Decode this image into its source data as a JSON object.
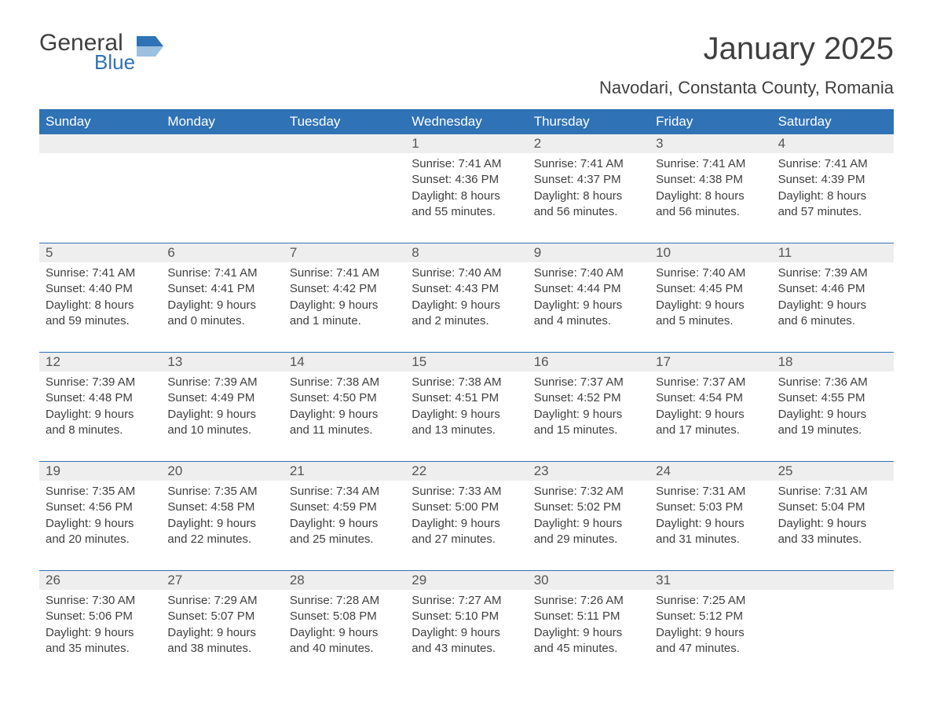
{
  "brand": {
    "word1": "General",
    "word2": "Blue",
    "color": "#2f72b6"
  },
  "title": "January 2025",
  "location": "Navodari, Constanta County, Romania",
  "theme": {
    "header_bg": "#2f72b6",
    "header_fg": "#ffffff",
    "daynum_bg": "#eeeeee",
    "text_color": "#3f3f3f",
    "rule_color": "#2f72b6",
    "page_bg": "#ffffff",
    "title_fontsize": 40,
    "location_fontsize": 22,
    "weekday_fontsize": 17,
    "body_fontsize": 15
  },
  "weekdays": [
    "Sunday",
    "Monday",
    "Tuesday",
    "Wednesday",
    "Thursday",
    "Friday",
    "Saturday"
  ],
  "weeks": [
    [
      {
        "n": "",
        "sunrise": "",
        "sunset": "",
        "daylight": ""
      },
      {
        "n": "",
        "sunrise": "",
        "sunset": "",
        "daylight": ""
      },
      {
        "n": "",
        "sunrise": "",
        "sunset": "",
        "daylight": ""
      },
      {
        "n": "1",
        "sunrise": "Sunrise: 7:41 AM",
        "sunset": "Sunset: 4:36 PM",
        "daylight": "Daylight: 8 hours and 55 minutes."
      },
      {
        "n": "2",
        "sunrise": "Sunrise: 7:41 AM",
        "sunset": "Sunset: 4:37 PM",
        "daylight": "Daylight: 8 hours and 56 minutes."
      },
      {
        "n": "3",
        "sunrise": "Sunrise: 7:41 AM",
        "sunset": "Sunset: 4:38 PM",
        "daylight": "Daylight: 8 hours and 56 minutes."
      },
      {
        "n": "4",
        "sunrise": "Sunrise: 7:41 AM",
        "sunset": "Sunset: 4:39 PM",
        "daylight": "Daylight: 8 hours and 57 minutes."
      }
    ],
    [
      {
        "n": "5",
        "sunrise": "Sunrise: 7:41 AM",
        "sunset": "Sunset: 4:40 PM",
        "daylight": "Daylight: 8 hours and 59 minutes."
      },
      {
        "n": "6",
        "sunrise": "Sunrise: 7:41 AM",
        "sunset": "Sunset: 4:41 PM",
        "daylight": "Daylight: 9 hours and 0 minutes."
      },
      {
        "n": "7",
        "sunrise": "Sunrise: 7:41 AM",
        "sunset": "Sunset: 4:42 PM",
        "daylight": "Daylight: 9 hours and 1 minute."
      },
      {
        "n": "8",
        "sunrise": "Sunrise: 7:40 AM",
        "sunset": "Sunset: 4:43 PM",
        "daylight": "Daylight: 9 hours and 2 minutes."
      },
      {
        "n": "9",
        "sunrise": "Sunrise: 7:40 AM",
        "sunset": "Sunset: 4:44 PM",
        "daylight": "Daylight: 9 hours and 4 minutes."
      },
      {
        "n": "10",
        "sunrise": "Sunrise: 7:40 AM",
        "sunset": "Sunset: 4:45 PM",
        "daylight": "Daylight: 9 hours and 5 minutes."
      },
      {
        "n": "11",
        "sunrise": "Sunrise: 7:39 AM",
        "sunset": "Sunset: 4:46 PM",
        "daylight": "Daylight: 9 hours and 6 minutes."
      }
    ],
    [
      {
        "n": "12",
        "sunrise": "Sunrise: 7:39 AM",
        "sunset": "Sunset: 4:48 PM",
        "daylight": "Daylight: 9 hours and 8 minutes."
      },
      {
        "n": "13",
        "sunrise": "Sunrise: 7:39 AM",
        "sunset": "Sunset: 4:49 PM",
        "daylight": "Daylight: 9 hours and 10 minutes."
      },
      {
        "n": "14",
        "sunrise": "Sunrise: 7:38 AM",
        "sunset": "Sunset: 4:50 PM",
        "daylight": "Daylight: 9 hours and 11 minutes."
      },
      {
        "n": "15",
        "sunrise": "Sunrise: 7:38 AM",
        "sunset": "Sunset: 4:51 PM",
        "daylight": "Daylight: 9 hours and 13 minutes."
      },
      {
        "n": "16",
        "sunrise": "Sunrise: 7:37 AM",
        "sunset": "Sunset: 4:52 PM",
        "daylight": "Daylight: 9 hours and 15 minutes."
      },
      {
        "n": "17",
        "sunrise": "Sunrise: 7:37 AM",
        "sunset": "Sunset: 4:54 PM",
        "daylight": "Daylight: 9 hours and 17 minutes."
      },
      {
        "n": "18",
        "sunrise": "Sunrise: 7:36 AM",
        "sunset": "Sunset: 4:55 PM",
        "daylight": "Daylight: 9 hours and 19 minutes."
      }
    ],
    [
      {
        "n": "19",
        "sunrise": "Sunrise: 7:35 AM",
        "sunset": "Sunset: 4:56 PM",
        "daylight": "Daylight: 9 hours and 20 minutes."
      },
      {
        "n": "20",
        "sunrise": "Sunrise: 7:35 AM",
        "sunset": "Sunset: 4:58 PM",
        "daylight": "Daylight: 9 hours and 22 minutes."
      },
      {
        "n": "21",
        "sunrise": "Sunrise: 7:34 AM",
        "sunset": "Sunset: 4:59 PM",
        "daylight": "Daylight: 9 hours and 25 minutes."
      },
      {
        "n": "22",
        "sunrise": "Sunrise: 7:33 AM",
        "sunset": "Sunset: 5:00 PM",
        "daylight": "Daylight: 9 hours and 27 minutes."
      },
      {
        "n": "23",
        "sunrise": "Sunrise: 7:32 AM",
        "sunset": "Sunset: 5:02 PM",
        "daylight": "Daylight: 9 hours and 29 minutes."
      },
      {
        "n": "24",
        "sunrise": "Sunrise: 7:31 AM",
        "sunset": "Sunset: 5:03 PM",
        "daylight": "Daylight: 9 hours and 31 minutes."
      },
      {
        "n": "25",
        "sunrise": "Sunrise: 7:31 AM",
        "sunset": "Sunset: 5:04 PM",
        "daylight": "Daylight: 9 hours and 33 minutes."
      }
    ],
    [
      {
        "n": "26",
        "sunrise": "Sunrise: 7:30 AM",
        "sunset": "Sunset: 5:06 PM",
        "daylight": "Daylight: 9 hours and 35 minutes."
      },
      {
        "n": "27",
        "sunrise": "Sunrise: 7:29 AM",
        "sunset": "Sunset: 5:07 PM",
        "daylight": "Daylight: 9 hours and 38 minutes."
      },
      {
        "n": "28",
        "sunrise": "Sunrise: 7:28 AM",
        "sunset": "Sunset: 5:08 PM",
        "daylight": "Daylight: 9 hours and 40 minutes."
      },
      {
        "n": "29",
        "sunrise": "Sunrise: 7:27 AM",
        "sunset": "Sunset: 5:10 PM",
        "daylight": "Daylight: 9 hours and 43 minutes."
      },
      {
        "n": "30",
        "sunrise": "Sunrise: 7:26 AM",
        "sunset": "Sunset: 5:11 PM",
        "daylight": "Daylight: 9 hours and 45 minutes."
      },
      {
        "n": "31",
        "sunrise": "Sunrise: 7:25 AM",
        "sunset": "Sunset: 5:12 PM",
        "daylight": "Daylight: 9 hours and 47 minutes."
      },
      {
        "n": "",
        "sunrise": "",
        "sunset": "",
        "daylight": ""
      }
    ]
  ]
}
